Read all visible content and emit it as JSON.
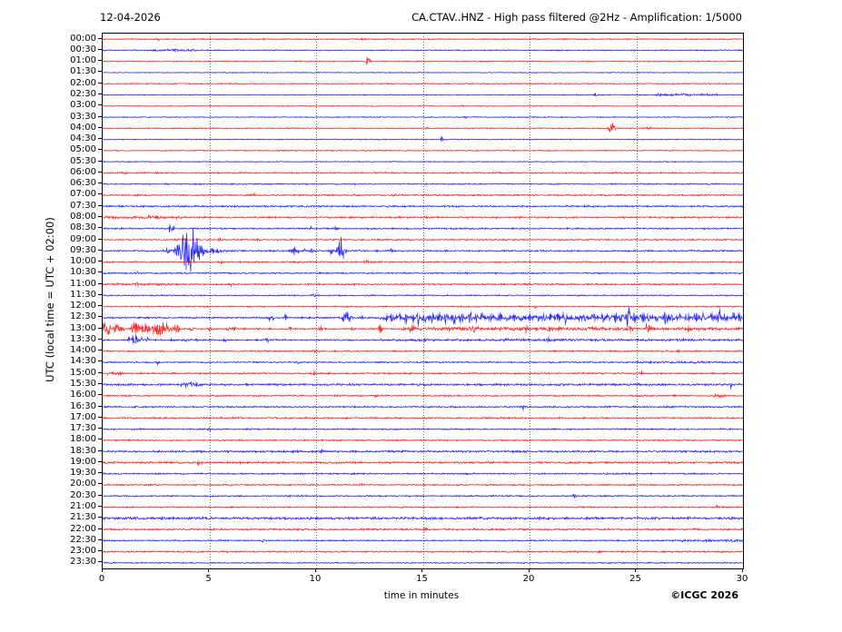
{
  "titles": {
    "date": "12-04-2026",
    "station": "CA.CTAV..HNZ - High pass filtered @2Hz - Amplification: 1/5000",
    "xlabel": "time in minutes",
    "ylabel": "UTC (local time = UTC + 02:00)",
    "copyright": "©ICGC 2026"
  },
  "chart_data": {
    "type": "line",
    "subtype": "helicorder-dayplot",
    "title": "CA.CTAV..HNZ - High pass filtered @2Hz - Amplification: 1/5000",
    "date": "12-04-2026",
    "xlabel": "time in minutes",
    "ylabel": "UTC (local time = UTC + 02:00)",
    "x_range": [
      0,
      30
    ],
    "x_ticks": [
      0,
      5,
      10,
      15,
      20,
      25,
      30
    ],
    "minutes_per_row": 30,
    "grid": {
      "vertical_minutes": [
        5,
        10,
        15,
        20,
        25
      ],
      "style": "dotted",
      "color": "#555555"
    },
    "colors": {
      "red": "#ff0000",
      "blue": "#0000ff"
    },
    "amplitude_unit": "relative-pixels",
    "rows": [
      {
        "label": "00:00",
        "color": "red",
        "noise": 0.7,
        "spikes": [
          [
            2.6,
            1.2
          ],
          [
            12.2,
            1.0
          ]
        ]
      },
      {
        "label": "00:30",
        "color": "blue",
        "noise": 0.7,
        "bands": [
          [
            2.4,
            4.4,
            0.8
          ]
        ],
        "spikes": [
          [
            3.4,
            1.5
          ]
        ]
      },
      {
        "label": "01:00",
        "color": "red",
        "noise": 0.6,
        "spikes": [
          [
            12.4,
            4.0
          ],
          [
            12.5,
            2.0
          ]
        ]
      },
      {
        "label": "01:30",
        "color": "blue",
        "noise": 0.5
      },
      {
        "label": "02:00",
        "color": "red",
        "noise": 0.7
      },
      {
        "label": "02:30",
        "color": "blue",
        "noise": 0.6,
        "bands": [
          [
            25.9,
            28.8,
            0.9
          ]
        ],
        "spikes": [
          [
            23.1,
            1.5
          ]
        ]
      },
      {
        "label": "03:00",
        "color": "red",
        "noise": 0.6,
        "spikes": [
          [
            16.9,
            1.0
          ]
        ]
      },
      {
        "label": "03:30",
        "color": "blue",
        "noise": 0.6,
        "spikes": [
          [
            17.0,
            1.8
          ]
        ]
      },
      {
        "label": "04:00",
        "color": "red",
        "noise": 0.7,
        "bands": [
          [
            25.2,
            25.7,
            1.0
          ]
        ],
        "spikes": [
          [
            23.75,
            3.5
          ],
          [
            23.85,
            4.0
          ],
          [
            23.95,
            3.0
          ]
        ]
      },
      {
        "label": "04:30",
        "color": "blue",
        "noise": 0.6,
        "spikes": [
          [
            15.9,
            3.2
          ]
        ]
      },
      {
        "label": "05:00",
        "color": "red",
        "noise": 0.7,
        "spikes": [
          [
            26.7,
            1.2
          ]
        ]
      },
      {
        "label": "05:30",
        "color": "blue",
        "noise": 0.6
      },
      {
        "label": "06:00",
        "color": "red",
        "noise": 0.9,
        "spikes": [
          [
            1.0,
            1.5
          ],
          [
            2.6,
            1.8
          ]
        ]
      },
      {
        "label": "06:30",
        "color": "blue",
        "noise": 0.8
      },
      {
        "label": "07:00",
        "color": "red",
        "noise": 1.0,
        "spikes": [
          [
            7.1,
            2.2
          ],
          [
            13.7,
            1.8
          ]
        ]
      },
      {
        "label": "07:30",
        "color": "blue",
        "noise": 1.1
      },
      {
        "label": "08:00",
        "color": "red",
        "noise": 1.1,
        "bands": [
          [
            0,
            4,
            0.6
          ]
        ],
        "spikes": [
          [
            2.2,
            1.5
          ]
        ]
      },
      {
        "label": "08:30",
        "color": "blue",
        "noise": 0.9,
        "spikes": [
          [
            3.15,
            5.5
          ],
          [
            3.3,
            2.0
          ],
          [
            9.8,
            1.8
          ],
          [
            10.9,
            2.5
          ]
        ]
      },
      {
        "label": "09:00",
        "color": "red",
        "noise": 0.9,
        "spikes": [
          [
            3.5,
            2.0
          ],
          [
            5.5,
            2.0
          ],
          [
            7.2,
            1.8
          ]
        ]
      },
      {
        "label": "09:30",
        "color": "blue",
        "noise": 1.0,
        "events": [
          [
            3.05,
            0.05,
            8
          ],
          [
            3.5,
            0.12,
            12
          ],
          [
            3.75,
            0.09,
            24
          ],
          [
            3.95,
            0.1,
            20
          ],
          [
            4.15,
            0.09,
            26
          ],
          [
            4.35,
            0.09,
            18
          ],
          [
            4.55,
            0.12,
            10
          ],
          [
            5.0,
            0.4,
            2.5
          ]
        ],
        "spikes": [
          [
            8.85,
            3.5
          ],
          [
            9.0,
            4.5
          ],
          [
            9.15,
            3.0
          ],
          [
            9.45,
            2.0
          ],
          [
            9.8,
            2.0
          ],
          [
            10.7,
            2.5
          ],
          [
            11.05,
            9.0
          ],
          [
            11.12,
            18.0
          ],
          [
            11.22,
            12.0
          ],
          [
            11.35,
            4.0
          ],
          [
            13.5,
            2.0
          ]
        ]
      },
      {
        "label": "10:00",
        "color": "red",
        "noise": 1.0,
        "spikes": [
          [
            5.6,
            2.5
          ],
          [
            12.35,
            3.5
          ],
          [
            12.45,
            2.0
          ]
        ]
      },
      {
        "label": "10:30",
        "color": "blue",
        "noise": 0.9,
        "spikes": [
          [
            1.6,
            1.5
          ],
          [
            6.0,
            1.2
          ]
        ]
      },
      {
        "label": "11:00",
        "color": "red",
        "noise": 1.0,
        "bands": [
          [
            0,
            3,
            0.5
          ]
        ],
        "spikes": [
          [
            1.6,
            2.0
          ],
          [
            6.0,
            1.5
          ],
          [
            20.0,
            1.5
          ]
        ]
      },
      {
        "label": "11:30",
        "color": "blue",
        "noise": 0.8,
        "spikes": [
          [
            9.9,
            1.8
          ]
        ]
      },
      {
        "label": "12:00",
        "color": "red",
        "noise": 0.8,
        "spikes": [
          [
            10.0,
            1.2
          ],
          [
            20.3,
            1.2
          ]
        ]
      },
      {
        "label": "12:30",
        "color": "blue",
        "noise": 1.0,
        "bands": [
          [
            13,
            30,
            1.6
          ]
        ],
        "spikes": [
          [
            7.8,
            2.5
          ],
          [
            8.0,
            2.5
          ],
          [
            8.55,
            6
          ],
          [
            9.3,
            2
          ],
          [
            11.3,
            5
          ],
          [
            11.45,
            7
          ],
          [
            11.6,
            4
          ],
          [
            12.1,
            3.5
          ],
          [
            13.3,
            4
          ],
          [
            13.6,
            5
          ],
          [
            13.9,
            5
          ],
          [
            14.2,
            6
          ],
          [
            14.5,
            4
          ],
          [
            14.8,
            6
          ],
          [
            15.1,
            4
          ],
          [
            15.4,
            5
          ],
          [
            15.8,
            4
          ],
          [
            16.1,
            5
          ],
          [
            16.45,
            7
          ],
          [
            16.8,
            4
          ],
          [
            17.2,
            8
          ],
          [
            17.5,
            7
          ],
          [
            17.8,
            5
          ],
          [
            18.2,
            4
          ],
          [
            18.6,
            6
          ],
          [
            19.0,
            4
          ],
          [
            19.3,
            3
          ],
          [
            19.6,
            5
          ],
          [
            20.0,
            5
          ],
          [
            20.4,
            4
          ],
          [
            20.7,
            3
          ],
          [
            21.0,
            6
          ],
          [
            21.3,
            5
          ],
          [
            21.65,
            7
          ],
          [
            22.0,
            5
          ],
          [
            22.3,
            4
          ],
          [
            22.6,
            5
          ],
          [
            23.0,
            5
          ],
          [
            23.4,
            6
          ],
          [
            23.7,
            4
          ],
          [
            24.0,
            6
          ],
          [
            24.3,
            5
          ],
          [
            24.62,
            14
          ],
          [
            24.9,
            5
          ],
          [
            25.3,
            7
          ],
          [
            25.6,
            6
          ],
          [
            26.0,
            4
          ],
          [
            26.4,
            8
          ],
          [
            26.7,
            5
          ],
          [
            27.0,
            6
          ],
          [
            27.4,
            5
          ],
          [
            27.8,
            4
          ],
          [
            28.1,
            4
          ],
          [
            28.5,
            5
          ],
          [
            28.9,
            7
          ],
          [
            29.2,
            5
          ],
          [
            29.55,
            6
          ],
          [
            29.85,
            5
          ]
        ]
      },
      {
        "label": "13:00",
        "color": "red",
        "noise": 1.0,
        "bands": [
          [
            0,
            0.4,
            6
          ],
          [
            0.5,
            1.0,
            4
          ],
          [
            1.3,
            2.25,
            6
          ],
          [
            2.3,
            3.1,
            7
          ],
          [
            3.1,
            3.6,
            3.5
          ],
          [
            14,
            25.2,
            1.2
          ],
          [
            26,
            30,
            0.8
          ]
        ],
        "spikes": [
          [
            4.2,
            2
          ],
          [
            5.0,
            2.5
          ],
          [
            5.9,
            2
          ],
          [
            6.15,
            2.5
          ],
          [
            7.3,
            2
          ],
          [
            8.8,
            2
          ],
          [
            10.2,
            2
          ],
          [
            11.7,
            2
          ],
          [
            13.0,
            6
          ],
          [
            14.5,
            3
          ],
          [
            16.2,
            4
          ],
          [
            17.4,
            3
          ],
          [
            19.8,
            3
          ],
          [
            20.9,
            3
          ],
          [
            21.2,
            3
          ],
          [
            24.7,
            3
          ],
          [
            25.45,
            5
          ],
          [
            25.6,
            5
          ],
          [
            25.8,
            4.5
          ],
          [
            27.5,
            2
          ]
        ]
      },
      {
        "label": "13:30",
        "color": "blue",
        "noise": 1.0,
        "bands": [
          [
            1.2,
            1.9,
            2
          ],
          [
            13,
            30,
            0.5
          ]
        ],
        "spikes": [
          [
            1.5,
            6
          ],
          [
            2.1,
            2
          ],
          [
            3.3,
            2
          ],
          [
            3.9,
            2
          ],
          [
            4.4,
            2
          ],
          [
            5.7,
            2
          ],
          [
            7.7,
            2.5
          ],
          [
            18.9,
            2
          ],
          [
            20.9,
            2
          ]
        ]
      },
      {
        "label": "14:00",
        "color": "red",
        "noise": 0.9,
        "spikes": [
          [
            9.9,
            2.0
          ],
          [
            27.0,
            1.3
          ]
        ]
      },
      {
        "label": "14:30",
        "color": "blue",
        "noise": 0.9,
        "bands": [
          [
            25,
            30,
            0.5
          ]
        ],
        "spikes": [
          [
            2.6,
            2.0
          ],
          [
            9.1,
            2.0
          ]
        ]
      },
      {
        "label": "15:00",
        "color": "red",
        "noise": 1.0,
        "bands": [
          [
            0.2,
            0.9,
            1.0
          ]
        ],
        "spikes": [
          [
            9.9,
            2.3
          ],
          [
            25.2,
            2.5
          ]
        ]
      },
      {
        "label": "15:30",
        "color": "blue",
        "noise": 1.3,
        "bands": [
          [
            3.5,
            4.5,
            1.5
          ]
        ],
        "spikes": [
          [
            4.0,
            2.5
          ],
          [
            29.4,
            4.0
          ]
        ]
      },
      {
        "label": "16:00",
        "color": "red",
        "noise": 0.9,
        "bands": [
          [
            28.6,
            29.2,
            1.5
          ]
        ],
        "spikes": [
          [
            12.8,
            1.5
          ]
        ]
      },
      {
        "label": "16:30",
        "color": "blue",
        "noise": 1.0,
        "spikes": [
          [
            19.7,
            2.5
          ],
          [
            26.5,
            1.5
          ]
        ]
      },
      {
        "label": "17:00",
        "color": "red",
        "noise": 1.0
      },
      {
        "label": "17:30",
        "color": "blue",
        "noise": 0.9,
        "spikes": [
          [
            5.0,
            2.2
          ]
        ]
      },
      {
        "label": "18:00",
        "color": "red",
        "noise": 0.9
      },
      {
        "label": "18:30",
        "color": "blue",
        "noise": 1.3,
        "spikes": [
          [
            10.3,
            2.2
          ]
        ]
      },
      {
        "label": "19:00",
        "color": "red",
        "noise": 1.2,
        "spikes": [
          [
            4.5,
            2.2
          ]
        ]
      },
      {
        "label": "19:30",
        "color": "blue",
        "noise": 0.9
      },
      {
        "label": "20:00",
        "color": "red",
        "noise": 0.9,
        "spikes": [
          [
            6.0,
            1.5
          ],
          [
            12.1,
            1.3
          ]
        ]
      },
      {
        "label": "20:30",
        "color": "blue",
        "noise": 0.9,
        "spikes": [
          [
            22.1,
            2.0
          ]
        ]
      },
      {
        "label": "21:00",
        "color": "red",
        "noise": 0.9,
        "spikes": [
          [
            14.0,
            1.2
          ],
          [
            28.8,
            2.2
          ]
        ]
      },
      {
        "label": "21:30",
        "color": "blue",
        "noise": 1.5
      },
      {
        "label": "22:00",
        "color": "red",
        "noise": 1.2,
        "spikes": [
          [
            15.1,
            1.8
          ]
        ]
      },
      {
        "label": "22:30",
        "color": "blue",
        "noise": 0.9,
        "bands": [
          [
            27,
            30,
            0.7
          ]
        ],
        "spikes": [
          [
            7.5,
            1.5
          ]
        ]
      },
      {
        "label": "23:00",
        "color": "red",
        "noise": 0.9,
        "spikes": [
          [
            22.2,
            1.3
          ],
          [
            23.3,
            1.3
          ]
        ]
      },
      {
        "label": "23:30",
        "color": "blue",
        "noise": 0.7
      }
    ]
  }
}
